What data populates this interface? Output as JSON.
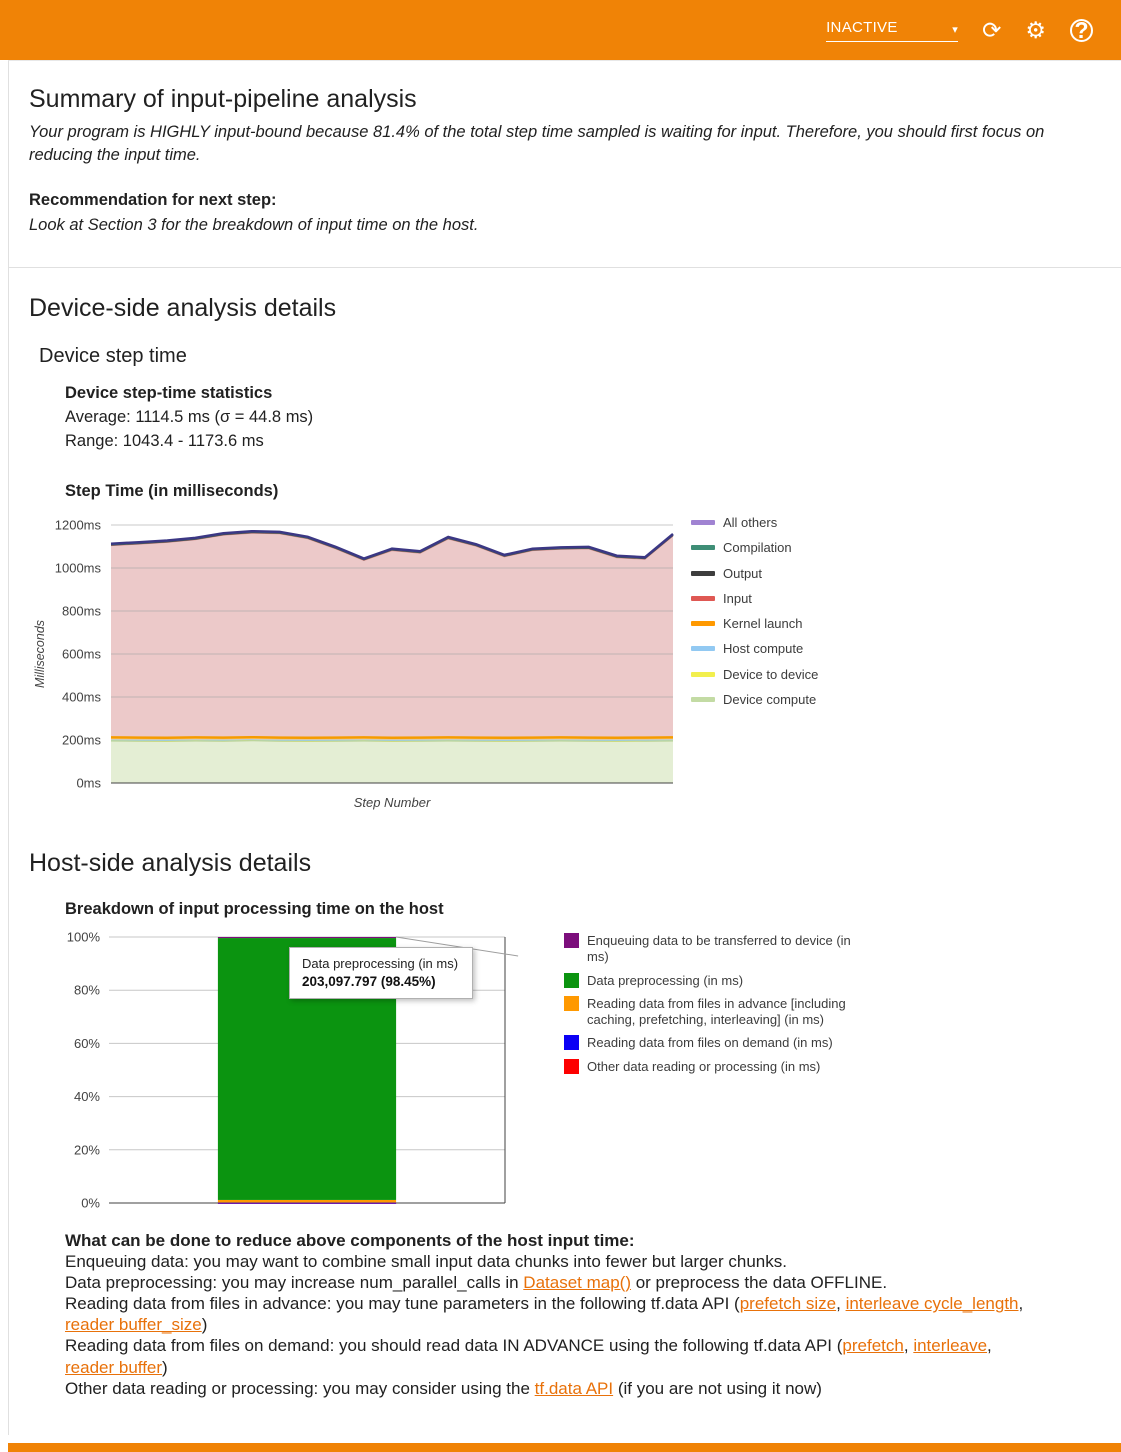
{
  "colors": {
    "header-bg": "#f08306",
    "link": "#e8710a",
    "text": "#212121"
  },
  "header": {
    "run_status": "INACTIVE",
    "icons": {
      "dropdown": "▾",
      "refresh": "⟳",
      "settings": "⚙",
      "help": "?"
    }
  },
  "summary": {
    "title": "Summary of input-pipeline analysis",
    "body": "Your program is HIGHLY input-bound because 81.4% of the total step time sampled is waiting for input. Therefore, you should first focus on reducing the input time.",
    "recommendation_label": "Recommendation for next step:",
    "recommendation_text": "Look at Section 3 for the breakdown of input time on the host."
  },
  "device_section": {
    "title": "Device-side analysis details",
    "subtitle": "Device step time",
    "stats_heading": "Device step-time statistics",
    "stat_average": "Average: 1114.5 ms (σ = 44.8 ms)",
    "stat_range": "Range: 1043.4 - 1173.6 ms",
    "chart_heading": "Step Time (in milliseconds)"
  },
  "host_section": {
    "title": "Host-side analysis details",
    "chart_heading": "Breakdown of input processing time on the host",
    "tips_heading": "What can be done to reduce above components of the host input time:",
    "tips": [
      {
        "segments": [
          {
            "t": "Enqueuing data: you may want to combine small input data chunks into fewer but larger chunks."
          }
        ]
      },
      {
        "segments": [
          {
            "t": "Data preprocessing: you may increase num_parallel_calls in "
          },
          {
            "t": "Dataset map()",
            "link": true
          },
          {
            "t": " or preprocess the data OFFLINE."
          }
        ]
      },
      {
        "segments": [
          {
            "t": "Reading data from files in advance: you may tune parameters in the following tf.data API ("
          },
          {
            "t": "prefetch size",
            "link": true
          },
          {
            "t": ", "
          },
          {
            "t": "interleave cycle_length",
            "link": true
          },
          {
            "t": ", "
          },
          {
            "t": "reader buffer_size",
            "link": true
          },
          {
            "t": ")"
          }
        ]
      },
      {
        "segments": [
          {
            "t": "Reading data from files on demand: you should read data IN ADVANCE using the following tf.data API ("
          },
          {
            "t": "prefetch",
            "link": true
          },
          {
            "t": ", "
          },
          {
            "t": "interleave",
            "link": true
          },
          {
            "t": ", "
          },
          {
            "t": "reader buffer",
            "link": true
          },
          {
            "t": ")"
          }
        ]
      },
      {
        "segments": [
          {
            "t": "Other data reading or processing: you may consider using the "
          },
          {
            "t": "tf.data API",
            "link": true
          },
          {
            "t": " (if you are not using it now)"
          }
        ]
      }
    ]
  },
  "chart_data": [
    {
      "type": "area",
      "title": "Step Time (in milliseconds)",
      "xlabel": "Step Number",
      "ylabel": "Milliseconds",
      "ylim": [
        0,
        1200
      ],
      "grid": true,
      "legend_position": "right",
      "legend_style": "line",
      "yticks": [
        {
          "v": 0,
          "label": "0ms"
        },
        {
          "v": 200,
          "label": "200ms"
        },
        {
          "v": 400,
          "label": "400ms"
        },
        {
          "v": 600,
          "label": "600ms"
        },
        {
          "v": 800,
          "label": "800ms"
        },
        {
          "v": 1000,
          "label": "1000ms"
        },
        {
          "v": 1200,
          "label": "1200ms"
        }
      ],
      "series": [
        {
          "name": "Device compute",
          "color": "#c3dba4",
          "fill": "#e4eed4",
          "line": "#b4cf92",
          "line_width": 1.2,
          "values": [
            196,
            195,
            194,
            196,
            195,
            197,
            195,
            194,
            195,
            196,
            194,
            195,
            196,
            195,
            194,
            195,
            196,
            195,
            194,
            195,
            196
          ]
        },
        {
          "name": "Device to device",
          "color": "#f2ef4d",
          "fill": "#f8f6a6",
          "line": "#e9e545",
          "line_width": 1,
          "values": [
            2,
            2,
            2,
            2,
            2,
            2,
            2,
            2,
            2,
            2,
            2,
            2,
            2,
            2,
            2,
            2,
            2,
            2,
            2,
            2,
            2
          ]
        },
        {
          "name": "Host compute",
          "color": "#92c9f2",
          "fill": "#cfe6f8",
          "line": "#92c9f2",
          "line_width": 1,
          "values": [
            2,
            2,
            2,
            2,
            2,
            2,
            2,
            2,
            2,
            2,
            2,
            2,
            2,
            2,
            2,
            2,
            2,
            2,
            2,
            2,
            2
          ]
        },
        {
          "name": "Kernel launch",
          "color": "#ff9900",
          "fill": "#ffd493",
          "line": "#f59b00",
          "line_width": 2.5,
          "values": [
            12,
            12,
            12,
            12,
            12,
            12,
            12,
            12,
            12,
            12,
            12,
            12,
            12,
            12,
            12,
            12,
            12,
            12,
            12,
            12,
            12
          ]
        },
        {
          "name": "Input",
          "color": "#df5853",
          "fill": "#ecc9c9",
          "line": "#d98f8d",
          "line_width": 1,
          "values": [
            892,
            900,
            909,
            919,
            942,
            949,
            948,
            926,
            878,
            823,
            871,
            858,
            923,
            890,
            842,
            870,
            875,
            878,
            838,
            830,
            937
          ]
        },
        {
          "name": "Output",
          "color": "#3d3d3d",
          "fill": "#bdbdbd",
          "line": "#4a4a4a",
          "line_width": 1.4,
          "values": [
            3,
            3,
            3,
            3,
            3,
            3,
            3,
            3,
            3,
            3,
            3,
            3,
            3,
            3,
            3,
            3,
            3,
            3,
            3,
            3,
            3
          ]
        },
        {
          "name": "Compilation",
          "color": "#3e8e76",
          "fill": "#a3c7bc",
          "line": "#3e8e76",
          "line_width": 1,
          "values": [
            2,
            2,
            2,
            2,
            2,
            2,
            2,
            2,
            2,
            2,
            2,
            2,
            2,
            2,
            2,
            2,
            2,
            2,
            2,
            2,
            2
          ]
        },
        {
          "name": "All others",
          "color": "#a083d2",
          "fill": "#b8a8dd",
          "line": "#3b3784",
          "line_width": 2.5,
          "values": [
            4,
            4,
            4,
            4,
            4,
            4,
            4,
            4,
            4,
            4,
            4,
            4,
            4,
            4,
            4,
            4,
            4,
            4,
            4,
            4,
            4
          ]
        }
      ]
    },
    {
      "type": "bar",
      "stacked": true,
      "categories": [
        ""
      ],
      "ylim": [
        0,
        100
      ],
      "grid": true,
      "legend_position": "right",
      "legend_style": "square",
      "yticks": [
        {
          "v": 0,
          "label": "0%"
        },
        {
          "v": 20,
          "label": "20%"
        },
        {
          "v": 40,
          "label": "40%"
        },
        {
          "v": 60,
          "label": "60%"
        },
        {
          "v": 80,
          "label": "80%"
        },
        {
          "v": 100,
          "label": "100%"
        }
      ],
      "series": [
        {
          "name": "Other data reading or processing (in ms)",
          "color": "#fd0000",
          "values": [
            0.05
          ]
        },
        {
          "name": "Reading data from files on demand (in ms)",
          "color": "#0b00f5",
          "values": [
            0.1
          ]
        },
        {
          "name": "Reading data from files in advance [including caching, prefetching, interleaving] (in ms)",
          "color": "#ff9900",
          "values": [
            1.0
          ]
        },
        {
          "name": "Data preprocessing (in ms)",
          "color": "#0b9410",
          "values": [
            98.45
          ]
        },
        {
          "name": "Enqueuing data to be transferred to device (in ms)",
          "color": "#7c0e7c",
          "values": [
            0.4
          ]
        }
      ],
      "tooltip": {
        "title": "Data preprocessing (in ms)",
        "value": "203,097.797 (98.45%)"
      }
    }
  ]
}
